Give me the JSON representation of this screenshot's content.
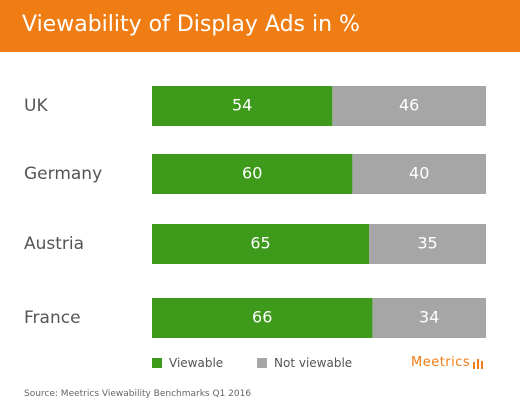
{
  "header": {
    "title": "Viewability of Display Ads in %"
  },
  "chart_data": {
    "type": "bar",
    "orientation": "horizontal",
    "stacked": true,
    "title": "Viewability of Display Ads in %",
    "categories": [
      "UK",
      "Germany",
      "Austria",
      "France"
    ],
    "series": [
      {
        "name": "Viewable",
        "values": [
          54,
          60,
          65,
          66
        ],
        "color": "#3d9a1b"
      },
      {
        "name": "Not viewable",
        "values": [
          46,
          40,
          35,
          34
        ],
        "color": "#a6a6a6"
      }
    ],
    "xlim": [
      0,
      100
    ],
    "grid": false,
    "legend": "bottom-center"
  },
  "legend": {
    "viewable": "Viewable",
    "not_viewable": "Not viewable"
  },
  "logo": {
    "text": "Meetrics"
  },
  "source": "Source: Meetrics Viewability Benchmarks Q1 2016",
  "colors": {
    "accent": "#f07d14",
    "viewable": "#3d9a1b",
    "not_viewable": "#a6a6a6"
  }
}
